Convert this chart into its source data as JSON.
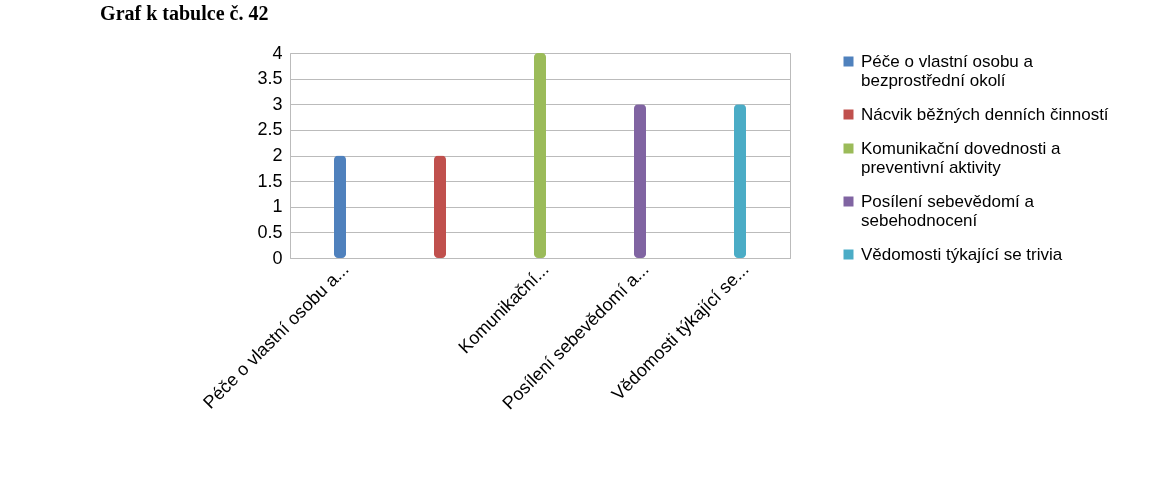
{
  "chart_data": {
    "type": "bar",
    "title": "Graf k tabulce č. 42",
    "categories": [
      "Péče o vlastní osobu a...",
      null,
      "Komunikační...",
      "Posílení sebevědomí a...",
      "Vědomosti týkající se..."
    ],
    "series": [
      {
        "name": "Péče o vlastní osobu a bezprostřední okolí",
        "color": "#4f81bd",
        "values": [
          2,
          null,
          null,
          null,
          null
        ]
      },
      {
        "name": "Nácvik běžných denních činností",
        "color": "#c0504d",
        "values": [
          null,
          2,
          null,
          null,
          null
        ]
      },
      {
        "name": "Komunikační dovednosti a preventivní aktivity",
        "color": "#9bbb59",
        "values": [
          null,
          null,
          4,
          null,
          null
        ]
      },
      {
        "name": "Posílení sebevědomí a sebehodnocení",
        "color": "#8064a2",
        "values": [
          null,
          null,
          null,
          3,
          null
        ]
      },
      {
        "name": "Vědomosti týkající se trivia",
        "color": "#4bacc6",
        "values": [
          null,
          null,
          null,
          null,
          3
        ]
      }
    ],
    "ylim": [
      0,
      4
    ],
    "yticks": [
      0,
      0.5,
      1,
      1.5,
      2,
      2.5,
      3,
      3.5,
      4
    ],
    "grid": "y",
    "legend": "right"
  }
}
